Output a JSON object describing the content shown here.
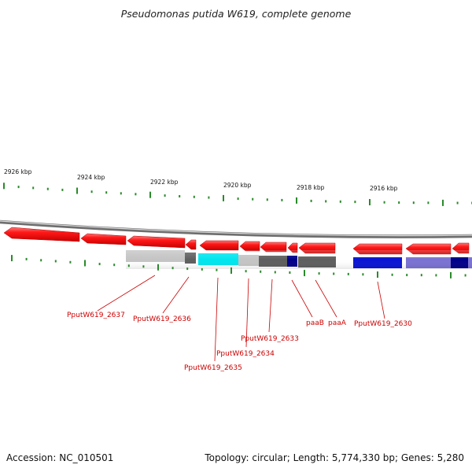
{
  "title": "Pseudomonas putida W619, complete genome",
  "footer": {
    "accession": "Accession: NC_010501",
    "topology": "Topology: circular; Length: 5,774,330 bp; Genes: 5,280"
  },
  "scale_labels": [
    "2926 kbp",
    "2924 kbp",
    "2922 kbp",
    "2920 kbp",
    "2918 kbp",
    "2916 kbp"
  ],
  "gene_labels": [
    "PputW619_2637",
    "PputW619_2636",
    "PputW619_2635",
    "PputW619_2634",
    "PputW619_2633",
    "paaB",
    "paaA",
    "PputW619_2630"
  ],
  "colors": {
    "forward_cds": "#ff2020",
    "backbone": "#8a8a8a",
    "tick": "#2a8a2a",
    "label": "#cc0000",
    "light_gray": "#c4c4c4",
    "dark_gray": "#5e5e5e",
    "cyan": "#00e5ee",
    "navy": "#000088",
    "blue": "#0a14d2",
    "lavender": "#7a72d2"
  }
}
